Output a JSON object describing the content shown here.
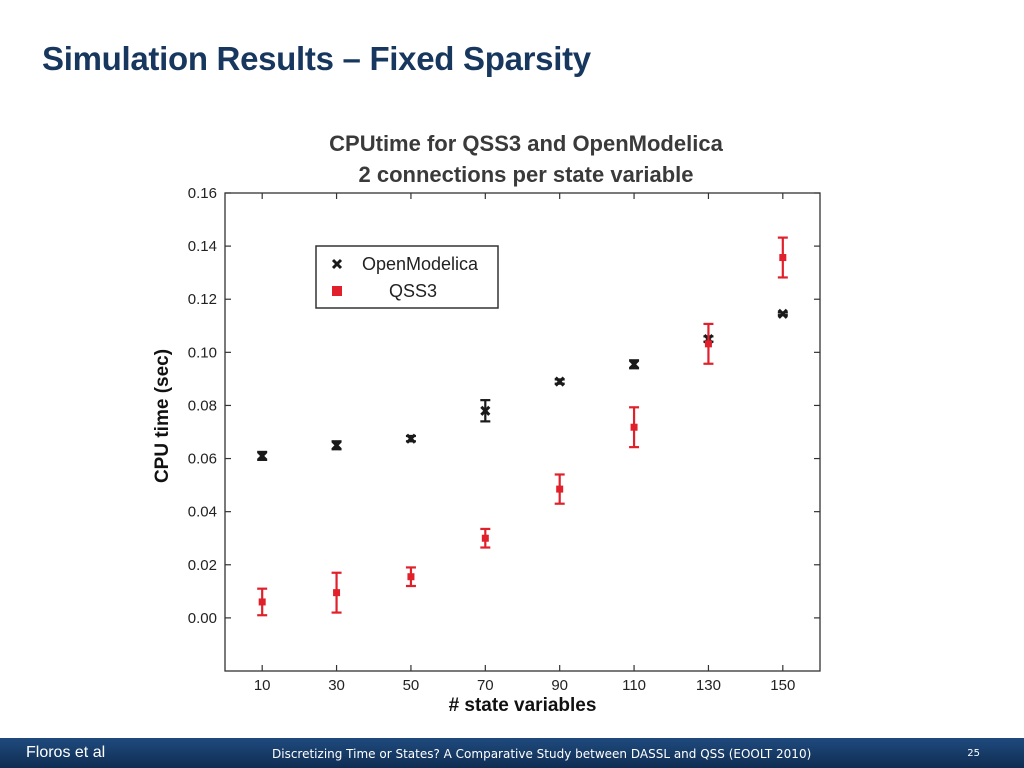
{
  "slide": {
    "title": "Simulation Results – Fixed Sparsity"
  },
  "footer": {
    "author": "Floros et al",
    "center": "Discretizing Time or States? A Comparative Study between DASSL and QSS   (EOOLT 2010)",
    "page": "25",
    "colors": {
      "background": "#17375e",
      "text": "#ffffff"
    }
  },
  "colors": {
    "title": "#17375e",
    "openmodelica": "#1a1a1a",
    "qss3": "#e0202a"
  },
  "chart_data": {
    "type": "scatter",
    "title": [
      "CPUtime for QSS3 and OpenModelica",
      "2 connections per state variable"
    ],
    "xlabel": "# state variables",
    "ylabel": "CPU time (sec)",
    "xlim": [
      0,
      160
    ],
    "ylim": [
      -0.02,
      0.16
    ],
    "x_ticks": [
      10,
      30,
      50,
      70,
      90,
      110,
      130,
      150
    ],
    "y_ticks": [
      0.0,
      0.02,
      0.04,
      0.06,
      0.08,
      0.1,
      0.12,
      0.14,
      0.16
    ],
    "y_tick_labels": [
      "0.00",
      "0.02",
      "0.04",
      "0.06",
      "0.08",
      "0.10",
      "0.12",
      "0.14",
      "0.16"
    ],
    "grid": false,
    "legend_position": "top-left",
    "series": [
      {
        "name": "OpenModelica",
        "marker": "x",
        "color": "#1a1a1a",
        "x": [
          10,
          30,
          50,
          70,
          90,
          110,
          130,
          150
        ],
        "y": [
          0.061,
          0.065,
          0.0675,
          0.078,
          0.089,
          0.0955,
          0.105,
          0.1145
        ],
        "err": [
          0.0015,
          0.0015,
          0.001,
          0.004,
          0.0008,
          0.0015,
          0.001,
          0.0005
        ]
      },
      {
        "name": "QSS3",
        "marker": "square",
        "color": "#e0202a",
        "x": [
          10,
          30,
          50,
          70,
          90,
          110,
          130,
          150
        ],
        "y": [
          0.006,
          0.0095,
          0.0155,
          0.03,
          0.0485,
          0.0718,
          0.1032,
          0.1357
        ],
        "err": [
          0.005,
          0.0075,
          0.0035,
          0.0035,
          0.0055,
          0.0075,
          0.0075,
          0.0075
        ]
      }
    ]
  }
}
